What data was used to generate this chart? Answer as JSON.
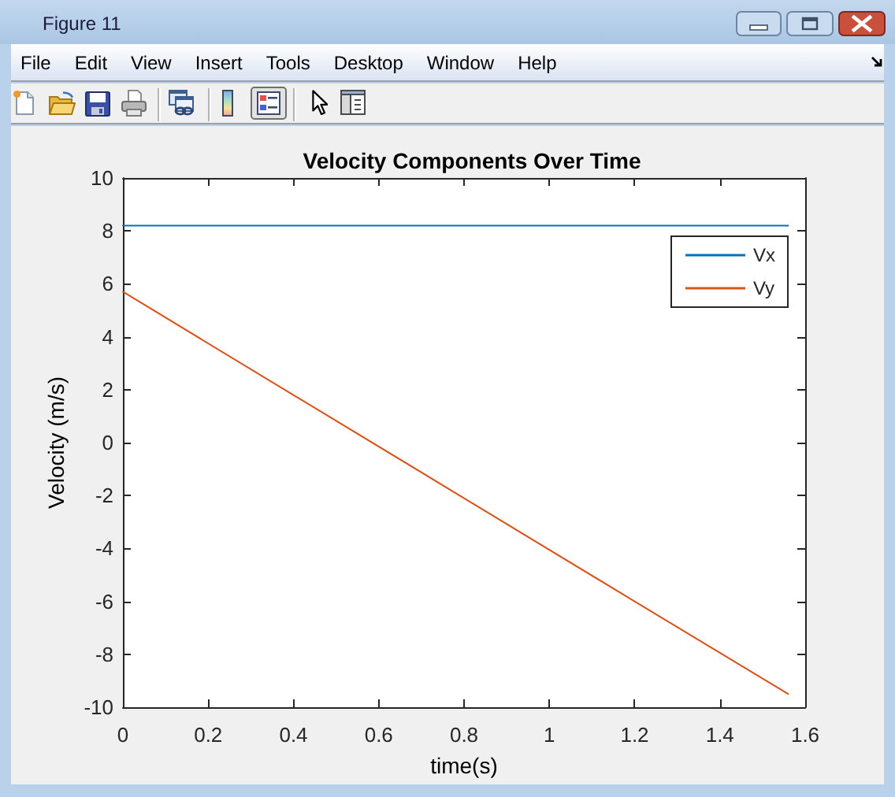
{
  "chart_data": {
    "type": "line",
    "title": "Velocity Components Over Time",
    "xlabel": "time(s)",
    "ylabel": "Velocity (m/s)",
    "annotations": [
      "Figure 11",
      "File",
      "Edit",
      "View",
      "Insert",
      "Tools",
      "Desktop",
      "Window",
      "Help"
    ],
    "series": [
      {
        "name": "Vx",
        "color": "#0072bd",
        "x": [
          0,
          1.56
        ],
        "values": [
          8.2,
          8.2
        ]
      },
      {
        "name": "Vy",
        "color": "#d95319",
        "x": [
          0,
          0.4,
          0.8,
          1.2,
          1.56
        ],
        "values": [
          5.7,
          1.8,
          -2.1,
          -6.0,
          -9.5
        ]
      }
    ],
    "xlim": [
      0,
      1.6
    ],
    "ylim": [
      -10,
      10
    ],
    "xticks": [
      0,
      0.2,
      0.4,
      0.6,
      0.8,
      1,
      1.2,
      1.4,
      1.6
    ],
    "yticks": [
      -10,
      -8,
      -6,
      -4,
      -2,
      0,
      2,
      4,
      6,
      8,
      10
    ],
    "legend": "top right",
    "marker": "none",
    "line_style": "solid"
  }
}
